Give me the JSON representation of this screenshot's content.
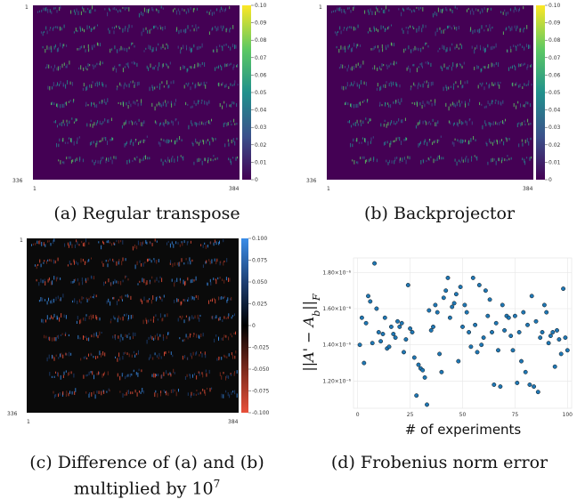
{
  "panels": {
    "a": {
      "caption": "(a) Regular transpose",
      "axis": {
        "top_left": "1",
        "bottom_left": "336",
        "x_start": "1",
        "x_end": "384"
      },
      "colorbar_ticks": [
        "0.10",
        "0.09",
        "0.08",
        "0.07",
        "0.06",
        "0.05",
        "0.04",
        "0.03",
        "0.02",
        "0.01",
        "0"
      ]
    },
    "b": {
      "caption": "(b) Backprojector",
      "axis": {
        "top_left": "1",
        "bottom_left": "336",
        "x_start": "1",
        "x_end": "384"
      },
      "colorbar_ticks": [
        "0.10",
        "0.09",
        "0.08",
        "0.07",
        "0.06",
        "0.05",
        "0.04",
        "0.03",
        "0.02",
        "0.01",
        "0"
      ]
    },
    "c": {
      "caption_line1": "(c) Difference of (a) and (b)",
      "caption_line2": "multiplied by 10",
      "caption_exp": "7",
      "axis": {
        "top_left": "1",
        "bottom_left": "336",
        "x_start": "1",
        "x_end": "384"
      },
      "colorbar_ticks": [
        "0.100",
        "0.075",
        "0.050",
        "0.025",
        "0",
        "-0.025",
        "-0.050",
        "-0.075",
        "-0.100"
      ]
    },
    "d": {
      "caption": "(d) Frobenius norm error",
      "xlabel": "# of experiments",
      "ylabel": "||A' − A_b||_F"
    }
  },
  "chart_data": {
    "type": "scatter",
    "title": "",
    "xlabel": "# of experiments",
    "ylabel": "||A' − A_b||_F",
    "xlim": [
      -2,
      102
    ],
    "ylim": [
      1.05e-06,
      1.88e-06
    ],
    "xticks": [
      0,
      25,
      50,
      75,
      100
    ],
    "xtick_labels": [
      "0",
      "25",
      "50",
      "75",
      "100"
    ],
    "yticks": [
      1.2e-06,
      1.4e-06,
      1.6e-06,
      1.8e-06
    ],
    "ytick_labels": [
      "1.20×10⁻⁶",
      "1.40×10⁻⁶",
      "1.60×10⁻⁶",
      "1.80×10⁻⁶"
    ],
    "marker_color": "#1f77b4",
    "x": [
      1,
      2,
      3,
      4,
      5,
      6,
      7,
      8,
      9,
      10,
      11,
      12,
      13,
      14,
      15,
      16,
      17,
      18,
      19,
      20,
      21,
      22,
      23,
      24,
      25,
      26,
      27,
      28,
      29,
      30,
      31,
      32,
      33,
      34,
      35,
      36,
      37,
      38,
      39,
      40,
      41,
      42,
      43,
      44,
      45,
      46,
      47,
      48,
      49,
      50,
      51,
      52,
      53,
      54,
      55,
      56,
      57,
      58,
      59,
      60,
      61,
      62,
      63,
      64,
      65,
      66,
      67,
      68,
      69,
      70,
      71,
      72,
      73,
      74,
      75,
      76,
      77,
      78,
      79,
      80,
      81,
      82,
      83,
      84,
      85,
      86,
      87,
      88,
      89,
      90,
      91,
      92,
      93,
      94,
      95,
      96,
      97,
      98,
      99,
      100
    ],
    "y": [
      1.4e-06,
      1.55e-06,
      1.3e-06,
      1.52e-06,
      1.67e-06,
      1.64e-06,
      1.41e-06,
      1.85e-06,
      1.6e-06,
      1.47e-06,
      1.42e-06,
      1.46e-06,
      1.55e-06,
      1.38e-06,
      1.39e-06,
      1.5e-06,
      1.46e-06,
      1.44e-06,
      1.53e-06,
      1.5e-06,
      1.52e-06,
      1.36e-06,
      1.43e-06,
      1.73e-06,
      1.49e-06,
      1.47e-06,
      1.33e-06,
      1.12e-06,
      1.29e-06,
      1.27e-06,
      1.26e-06,
      1.22e-06,
      1.07e-06,
      1.59e-06,
      1.48e-06,
      1.5e-06,
      1.62e-06,
      1.58e-06,
      1.35e-06,
      1.25e-06,
      1.66e-06,
      1.7e-06,
      1.77e-06,
      1.55e-06,
      1.61e-06,
      1.63e-06,
      1.68e-06,
      1.31e-06,
      1.72e-06,
      1.5e-06,
      1.62e-06,
      1.58e-06,
      1.47e-06,
      1.39e-06,
      1.77e-06,
      1.51e-06,
      1.36e-06,
      1.73e-06,
      1.4e-06,
      1.44e-06,
      1.7e-06,
      1.56e-06,
      1.65e-06,
      1.47e-06,
      1.18e-06,
      1.52e-06,
      1.37e-06,
      1.17e-06,
      1.62e-06,
      1.48e-06,
      1.56e-06,
      1.55e-06,
      1.45e-06,
      1.37e-06,
      1.56e-06,
      1.19e-06,
      1.47e-06,
      1.31e-06,
      1.58e-06,
      1.25e-06,
      1.51e-06,
      1.18e-06,
      1.67e-06,
      1.17e-06,
      1.53e-06,
      1.14e-06,
      1.44e-06,
      1.47e-06,
      1.62e-06,
      1.58e-06,
      1.41e-06,
      1.45e-06,
      1.47e-06,
      1.28e-06,
      1.48e-06,
      1.43e-06,
      1.35e-06,
      1.71e-06,
      1.44e-06,
      1.37e-06
    ]
  }
}
